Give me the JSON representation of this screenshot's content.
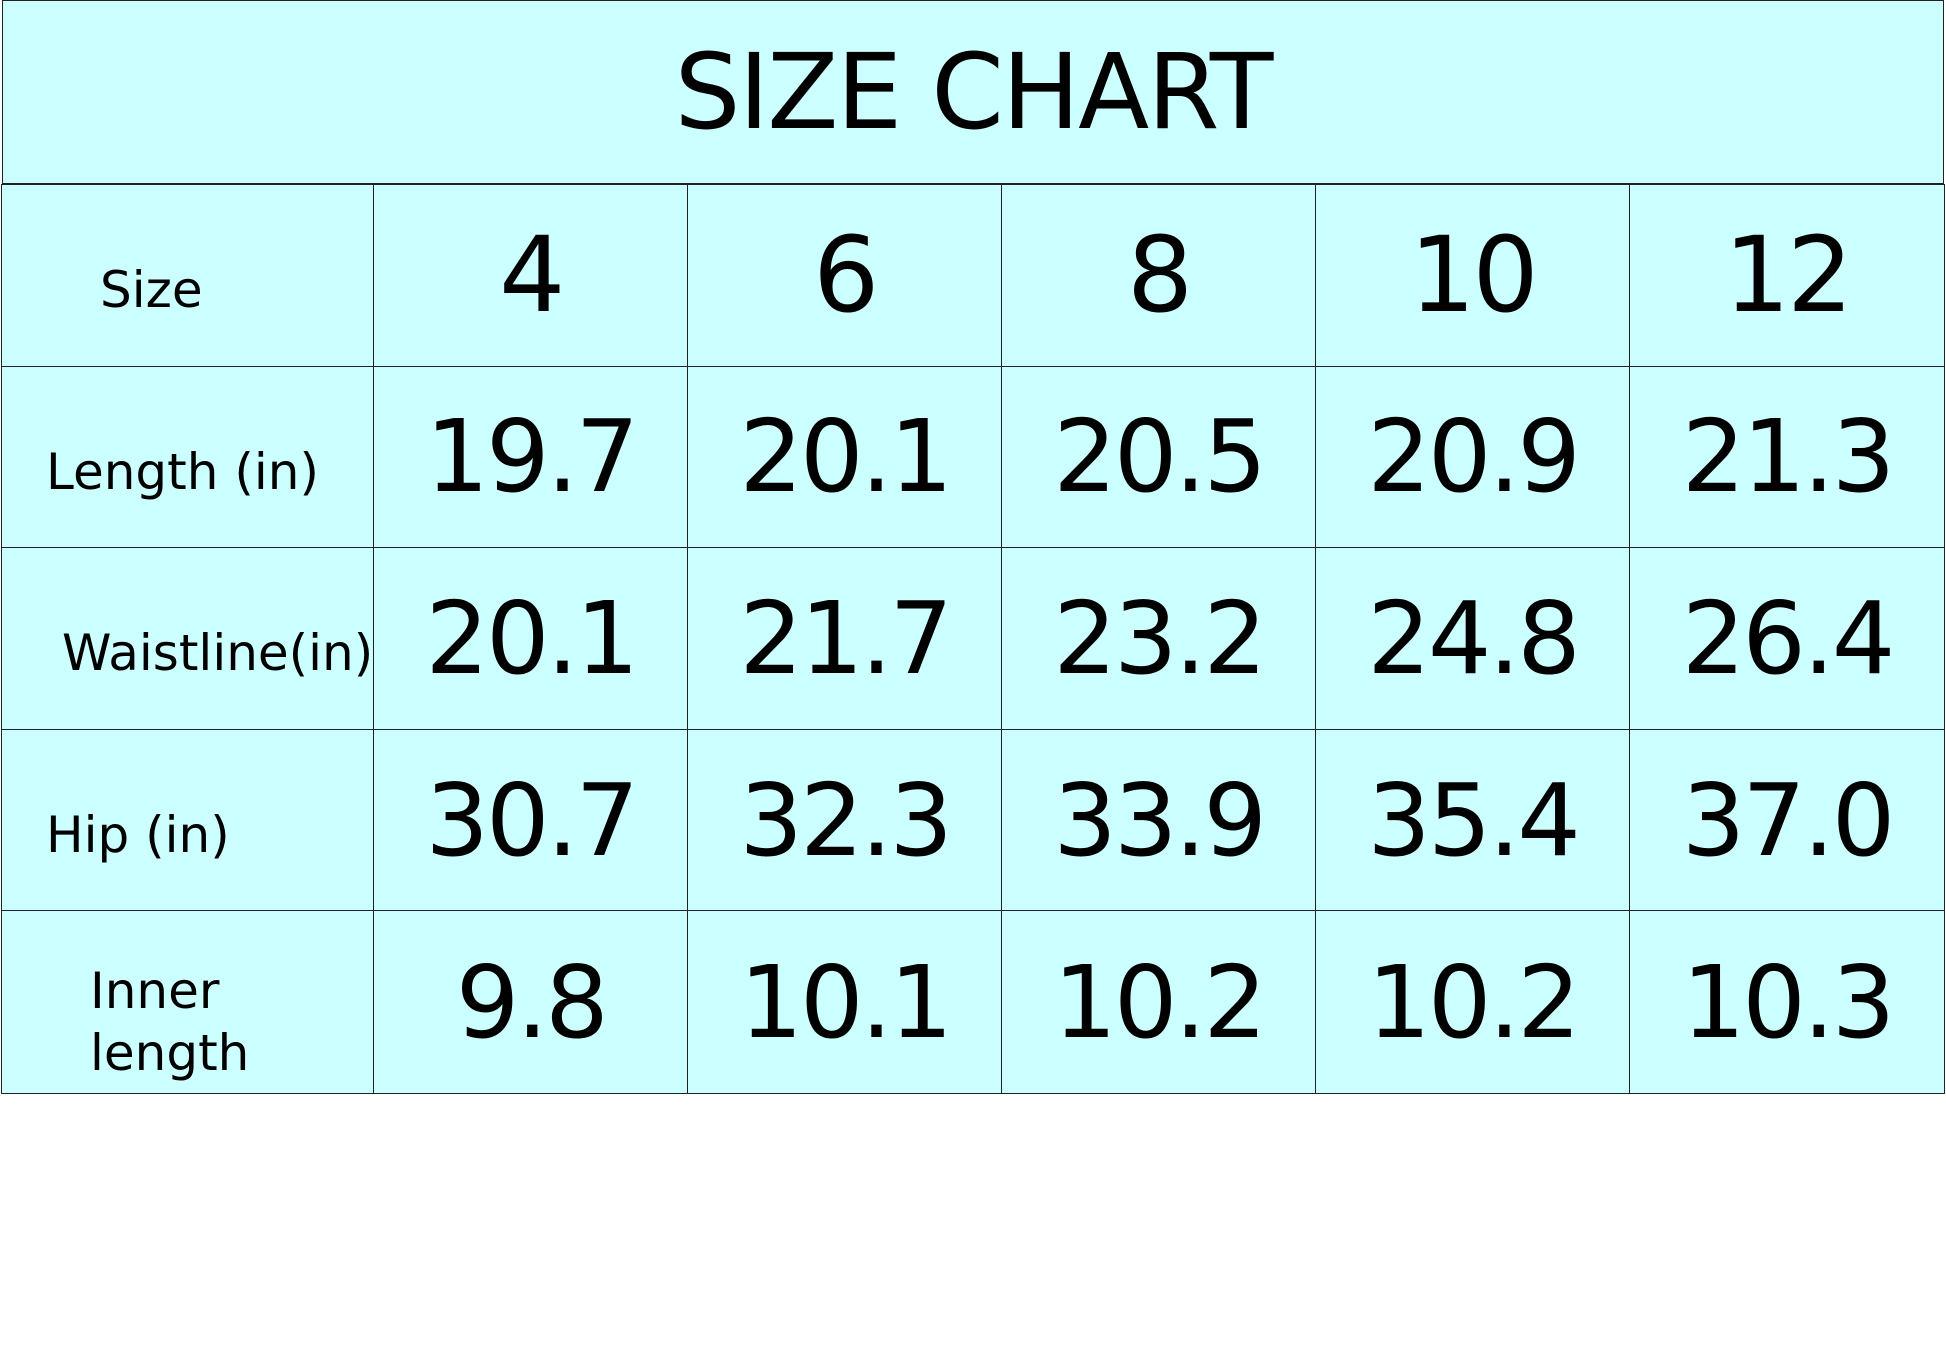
{
  "title": "SIZE CHART",
  "background_color": "#ccffff",
  "header": {
    "label": "Size",
    "sizes": [
      "4",
      "6",
      "8",
      "10",
      "12"
    ]
  },
  "rows": [
    {
      "label": "Length (in)",
      "values": [
        "19.7",
        "20.1",
        "20.5",
        "20.9",
        "21.3"
      ]
    },
    {
      "label": "Waistline(in)",
      "values": [
        "20.1",
        "21.7",
        "23.2",
        "24.8",
        "26.4"
      ]
    },
    {
      "label": "Hip  (in)",
      "values": [
        "30.7",
        "32.3",
        "33.9",
        "35.4",
        "37.0"
      ]
    },
    {
      "label": "Inner length",
      "values": [
        "9.8",
        "10.1",
        "10.2",
        "10.2",
        "10.3"
      ]
    }
  ]
}
